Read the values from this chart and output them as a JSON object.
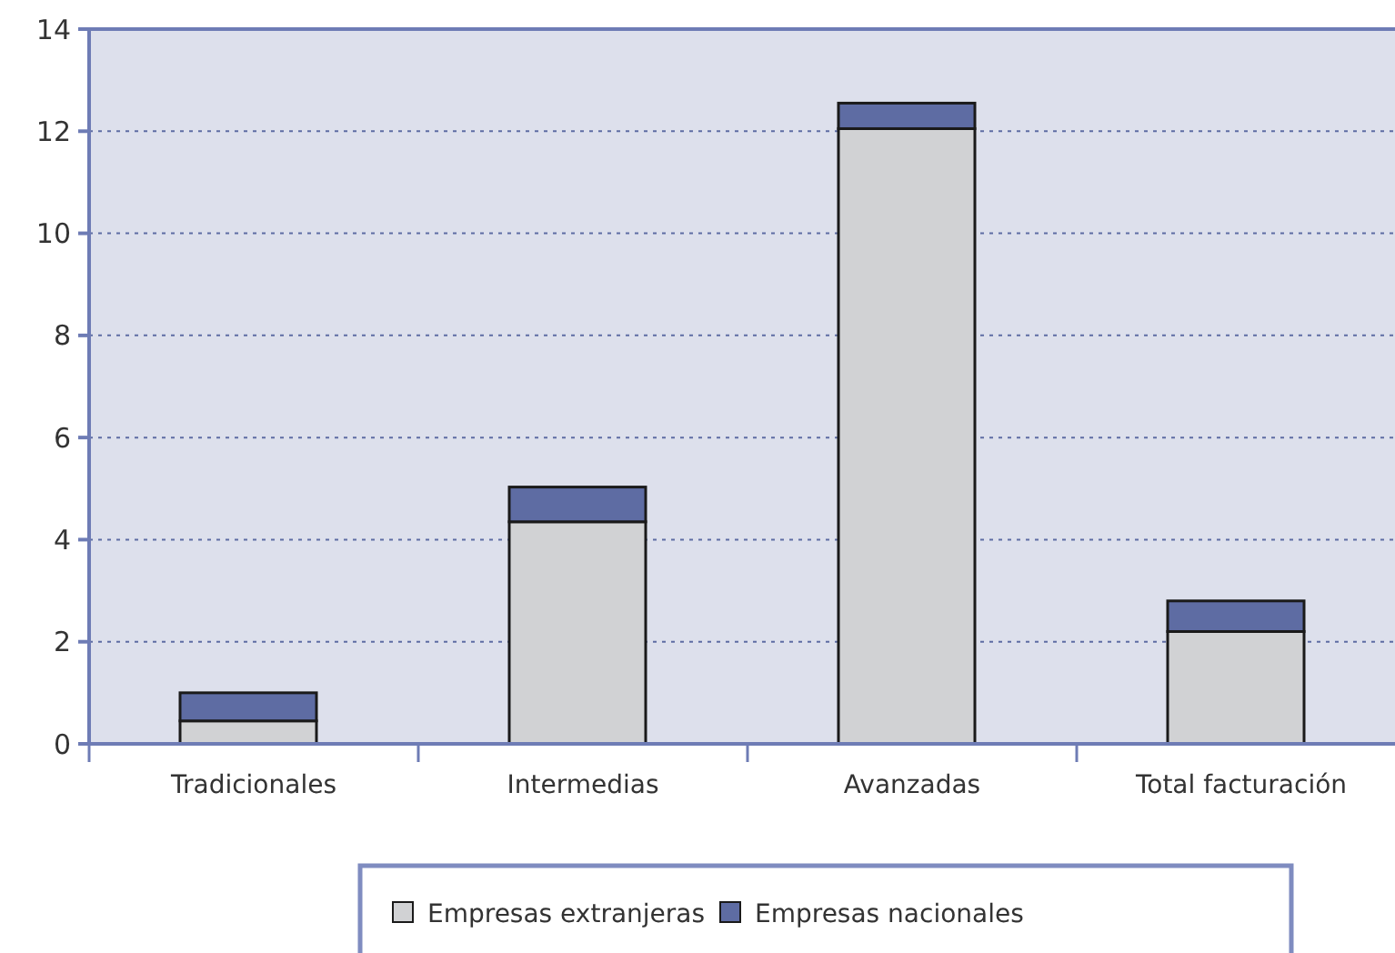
{
  "chart_data": {
    "type": "bar",
    "stacked": true,
    "categories": [
      "Tradicionales",
      "Intermedias",
      "Avanzadas",
      "Total facturación"
    ],
    "series": [
      {
        "name": "Empresas extranjeras",
        "color": "#d1d2d4",
        "values": [
          0.45,
          4.35,
          12.05,
          2.2
        ]
      },
      {
        "name": "Empresas nacionales",
        "color": "#5e6ca3",
        "values": [
          0.55,
          0.68,
          0.5,
          0.6
        ]
      }
    ],
    "ylim": [
      0,
      14
    ],
    "yticks": [
      0,
      2,
      4,
      6,
      8,
      10,
      12,
      14
    ],
    "grid": "y",
    "legend": "bottom"
  }
}
